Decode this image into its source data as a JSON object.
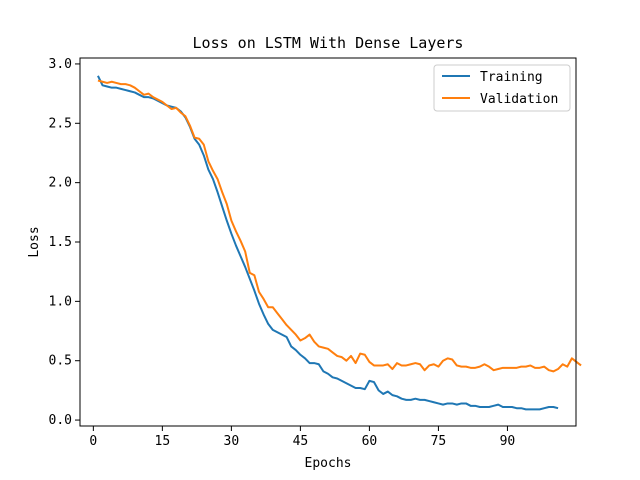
{
  "chart_data": {
    "type": "line",
    "title": "Loss on LSTM With Dense Layers",
    "xlabel": "Epochs",
    "ylabel": "Loss",
    "xlim": [
      -2.9,
      104.9
    ],
    "ylim": [
      -0.05,
      3.05
    ],
    "xticks": [
      0,
      15,
      30,
      45,
      60,
      75,
      90
    ],
    "yticks": [
      0.0,
      0.5,
      1.0,
      1.5,
      2.0,
      2.5,
      3.0
    ],
    "ytick_labels": [
      "0.0",
      "0.5",
      "1.0",
      "1.5",
      "2.0",
      "2.5",
      "3.0"
    ],
    "grid": false,
    "legend_position": "top-right",
    "series": [
      {
        "name": "Training",
        "color": "#1f77b4",
        "values": [
          2.9,
          2.82,
          2.81,
          2.8,
          2.8,
          2.79,
          2.78,
          2.77,
          2.76,
          2.74,
          2.72,
          2.72,
          2.71,
          2.69,
          2.67,
          2.65,
          2.64,
          2.63,
          2.6,
          2.55,
          2.47,
          2.37,
          2.32,
          2.23,
          2.11,
          2.03,
          1.92,
          1.8,
          1.68,
          1.57,
          1.47,
          1.38,
          1.29,
          1.19,
          1.09,
          0.98,
          0.89,
          0.81,
          0.76,
          0.74,
          0.72,
          0.7,
          0.62,
          0.59,
          0.55,
          0.52,
          0.48,
          0.48,
          0.47,
          0.41,
          0.39,
          0.36,
          0.35,
          0.33,
          0.31,
          0.29,
          0.27,
          0.27,
          0.26,
          0.33,
          0.32,
          0.25,
          0.22,
          0.24,
          0.21,
          0.2,
          0.18,
          0.17,
          0.17,
          0.18,
          0.17,
          0.17,
          0.16,
          0.15,
          0.14,
          0.13,
          0.14,
          0.14,
          0.13,
          0.14,
          0.14,
          0.12,
          0.12,
          0.11,
          0.11,
          0.11,
          0.12,
          0.13,
          0.11,
          0.11,
          0.11,
          0.1,
          0.1,
          0.09,
          0.09,
          0.09,
          0.09,
          0.1,
          0.11,
          0.11,
          0.1
        ]
      },
      {
        "name": "Validation",
        "color": "#ff7f0e",
        "values": [
          2.86,
          2.85,
          2.84,
          2.85,
          2.84,
          2.83,
          2.83,
          2.82,
          2.8,
          2.77,
          2.74,
          2.75,
          2.72,
          2.7,
          2.68,
          2.65,
          2.62,
          2.63,
          2.59,
          2.56,
          2.48,
          2.38,
          2.37,
          2.32,
          2.18,
          2.1,
          2.03,
          1.92,
          1.82,
          1.68,
          1.59,
          1.51,
          1.42,
          1.24,
          1.22,
          1.08,
          1.02,
          0.95,
          0.95,
          0.9,
          0.85,
          0.8,
          0.76,
          0.72,
          0.67,
          0.69,
          0.72,
          0.66,
          0.62,
          0.61,
          0.6,
          0.57,
          0.54,
          0.53,
          0.5,
          0.54,
          0.48,
          0.56,
          0.55,
          0.49,
          0.46,
          0.46,
          0.46,
          0.47,
          0.43,
          0.48,
          0.46,
          0.46,
          0.47,
          0.48,
          0.47,
          0.42,
          0.46,
          0.47,
          0.45,
          0.5,
          0.52,
          0.51,
          0.46,
          0.45,
          0.45,
          0.44,
          0.44,
          0.45,
          0.47,
          0.45,
          0.42,
          0.43,
          0.44,
          0.44,
          0.44,
          0.44,
          0.45,
          0.45,
          0.46,
          0.44,
          0.44,
          0.45,
          0.42,
          0.41,
          0.43,
          0.47,
          0.45,
          0.52,
          0.49,
          0.46
        ]
      }
    ]
  }
}
